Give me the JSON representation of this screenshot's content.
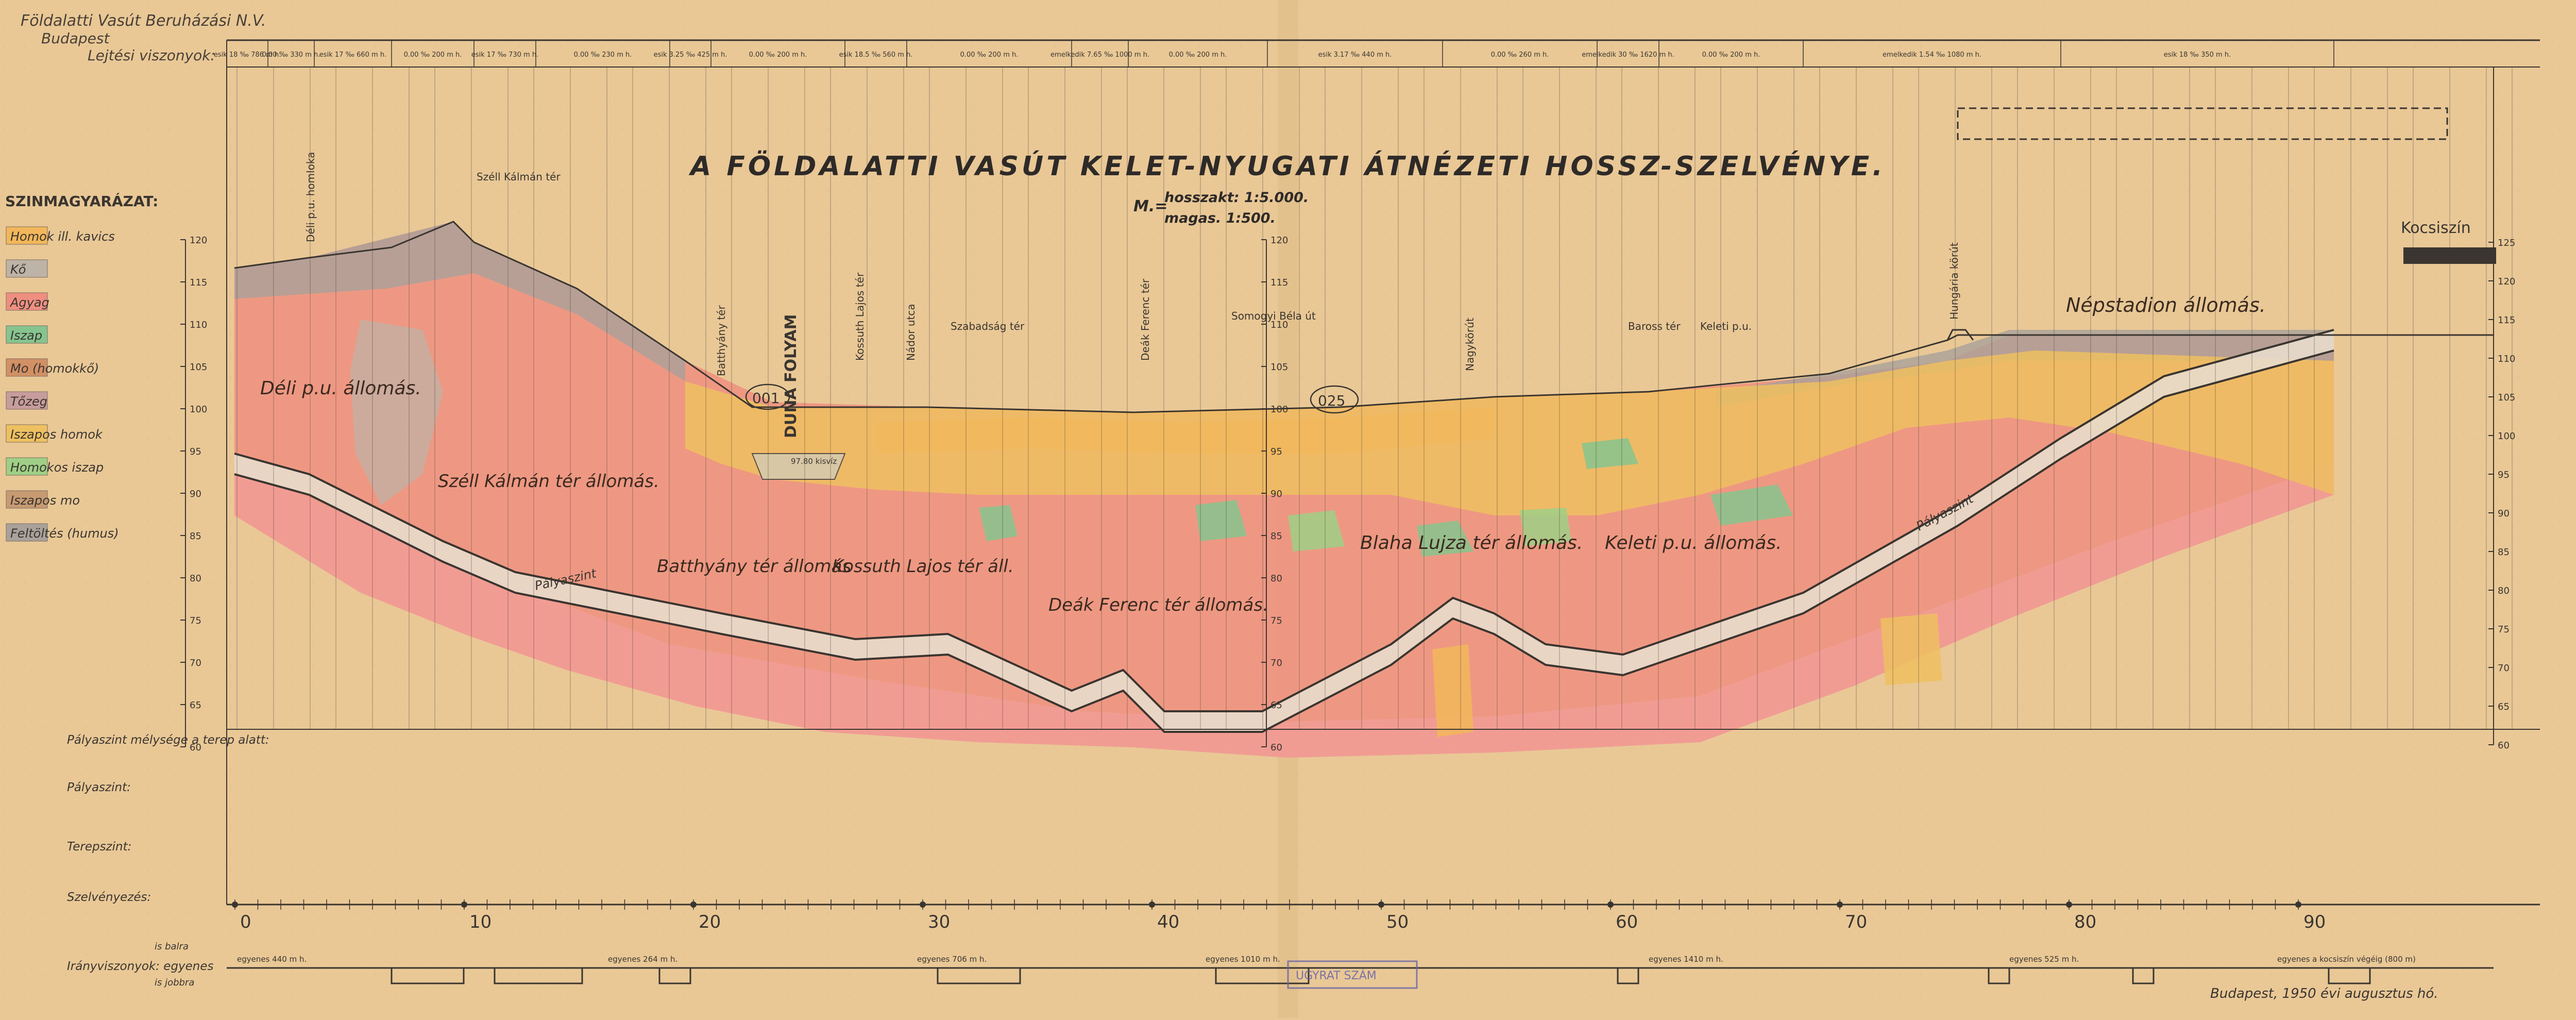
{
  "publisher": {
    "company": "Földalatti Vasút Beruházási N.V.",
    "city": "Budapest"
  },
  "title": "A FÖLDALATTI VASÚT KELET-NYUGATI ÁTNÉZETI HOSSZ-SZELVÉNYE.",
  "scale": {
    "prefix": "M.=",
    "horizontal": "hosszakt: 1:5.000.",
    "vertical": "magas. 1:500."
  },
  "row_labels": {
    "gradients": "Lejtési viszonyok:",
    "track_depth": "Pályaszint mélysége a terep alatt:",
    "track_level": "Pályaszint:",
    "ground_level": "Terepszint:",
    "chainage": "Szelvényezés:",
    "alignment_left": "Irányviszonyok: egyenes",
    "alignment_right_top": "is balra",
    "alignment_right_bottom": "is jobbra"
  },
  "legend": {
    "title": "SZINMAGYARÁZAT:",
    "items": [
      {
        "label": "Homok ill. kavics",
        "color": "#f2b75a"
      },
      {
        "label": "Kő",
        "color": "#bdb3a6"
      },
      {
        "label": "Agyag",
        "color": "#ef8f80"
      },
      {
        "label": "Iszap",
        "color": "#86c48e"
      },
      {
        "label": "Mo (homokkő)",
        "color": "#d29065"
      },
      {
        "label": "Tőzeg",
        "color": "#c79c9c"
      },
      {
        "label": "Iszapos homok",
        "color": "#eec060"
      },
      {
        "label": "Homokos iszap",
        "color": "#9fcf86"
      },
      {
        "label": "Iszapos mo",
        "color": "#c79a72"
      },
      {
        "label": "Feltöltés (humus)",
        "color": "#a9a19a"
      }
    ]
  },
  "stations": [
    {
      "label": "Déli p.u. állomás."
    },
    {
      "label": "Széll Kálmán tér állomás."
    },
    {
      "label": "Batthyány tér állomás"
    },
    {
      "label": "Kossuth Lajos tér áll."
    },
    {
      "label": "Deák Ferenc tér állomás."
    },
    {
      "label": "Blaha Lujza tér állomás."
    },
    {
      "label": "Keleti p.u. állomás."
    },
    {
      "label": "Népstadion állomás."
    }
  ],
  "places": {
    "deli_pu": "Déli p.u. homloka",
    "szell_kalman": "Széll Kálmán tér",
    "batthyany": "Batthyány tér",
    "duna": "DUNA FOLYAM",
    "kossuth": "Kossuth Lajos tér",
    "nador": "Nádor utca",
    "szabadsag": "Szabadság tér",
    "deak": "Deák Ferenc tér",
    "somogyi": "Somogyi Béla út",
    "nagykorut": "Nagykörút",
    "baross": "Baross tér",
    "keleti": "Keleti p.u.",
    "hungaria": "Hungária körút",
    "kocsiszin": "Kocsiszín"
  },
  "markers": {
    "m001": "001",
    "m025": "025",
    "water_level": "97.80 kisvíz",
    "track": "Pályaszint"
  },
  "axis": {
    "left_ticks": [
      "120",
      "115",
      "110",
      "105",
      "100",
      "95",
      "90",
      "85",
      "80",
      "75",
      "70",
      "65",
      "60"
    ],
    "center_ticks": [
      "120",
      "115",
      "110",
      "105",
      "100",
      "95",
      "90",
      "85",
      "80",
      "75",
      "70",
      "65",
      "60"
    ],
    "right_ticks": [
      "125",
      "120",
      "115",
      "110",
      "105",
      "100",
      "95",
      "90",
      "85",
      "80",
      "75",
      "70",
      "65",
      "60"
    ],
    "chainage_ticks": [
      "0",
      "10",
      "20",
      "30",
      "40",
      "50",
      "60",
      "70",
      "80",
      "90"
    ]
  },
  "gradients": [
    "esik 18 ‰  786 m h.",
    "0.00 ‰ 330 m h.",
    "esik 17 ‰ 660 m h.",
    "0.00 ‰ 200 m h.",
    "esik 17 ‰ 730 m h.",
    "0.00 ‰ 230 m h.",
    "esik 3.25 ‰ 425 m h.",
    "0.00 ‰ 200 m h.",
    "esik 18.5 ‰ 560 m h.",
    "0.00 ‰ 200 m h.",
    "emelkedik 7.65 ‰ 1000 m h.",
    "0.00 ‰ 200 m h.",
    "esik 3.17 ‰ 440 m h.",
    "0.00 ‰ 260 m h.",
    "emelkedik 30 ‰ 1620 m h.",
    "0.00 ‰ 200 m h.",
    "emelkedik 1.54 ‰ 1080 m h.",
    "esik 18 ‰ 350 m h."
  ],
  "alignment": [
    "egyenes 440 m h.",
    "egyenes 264 m h.",
    "egyenes 706 m h.",
    "egyenes 1010 m h.",
    "egyenes 1410 m h.",
    "egyenes 525 m h.",
    "egyenes a kocsiszín végéig (800 m)"
  ],
  "stamp": "UGYRAT SZÁM",
  "signature": "Budapest, 1950 évi augusztus hó."
}
